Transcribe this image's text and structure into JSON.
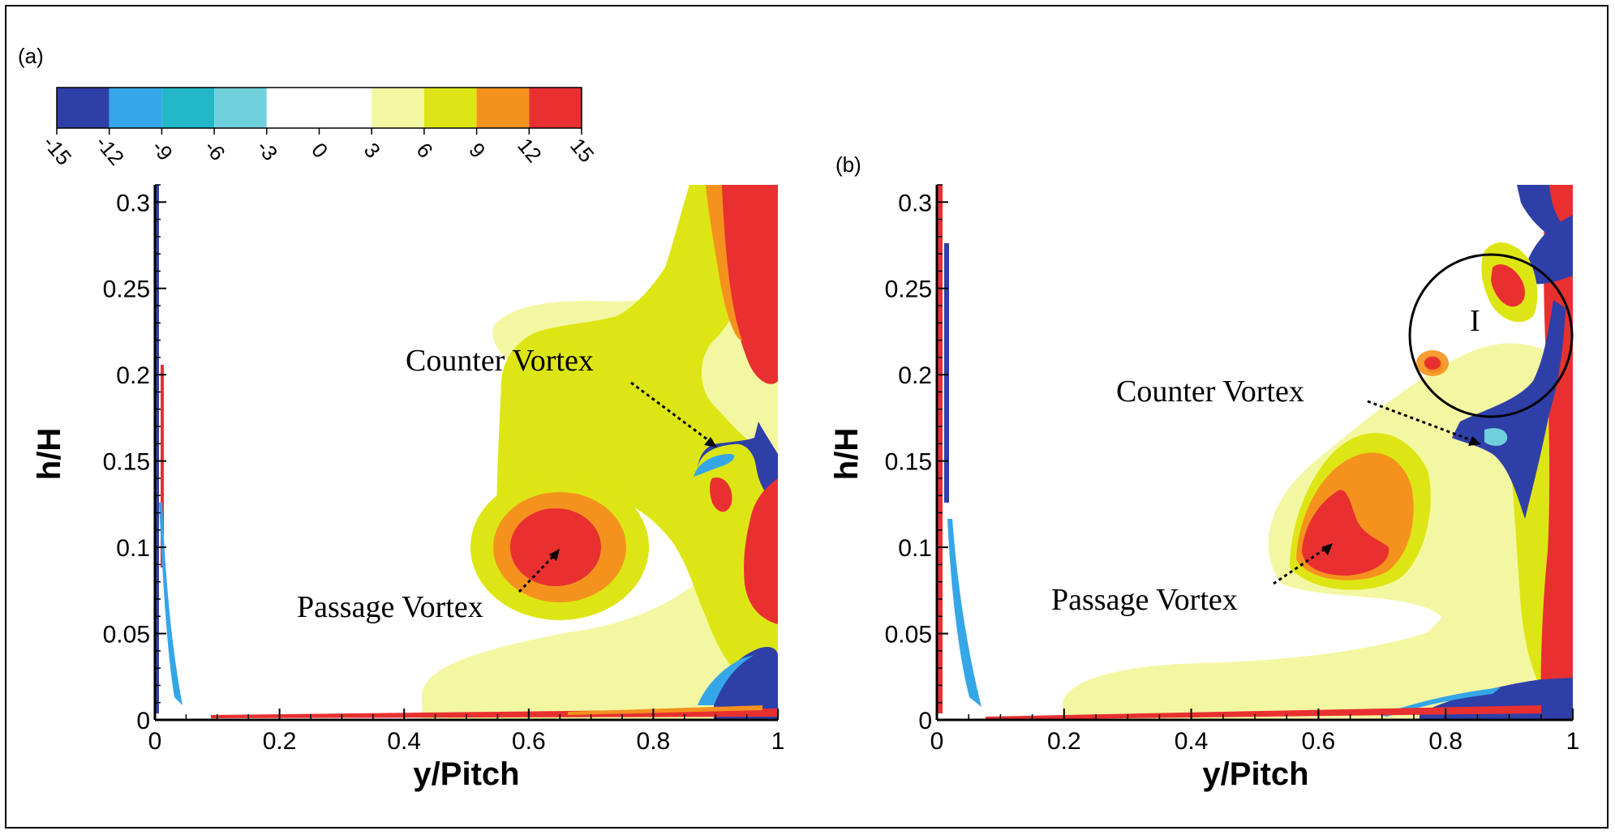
{
  "colorbar": {
    "ticks": [
      "-15",
      "-12",
      "-9",
      "-6",
      "-3",
      "0",
      "3",
      "6",
      "9",
      "12",
      "15"
    ],
    "colors": [
      "#2f3fa8",
      "#35a6e8",
      "#22b8c8",
      "#6fd0dc",
      "#ffffff",
      "#ffffff",
      "#f4f7a2",
      "#dde614",
      "#f5921e",
      "#e83030"
    ]
  },
  "chart_data": [
    {
      "type": "contour",
      "panel_label": "(a)",
      "xlabel": "y/Pitch",
      "ylabel": "h/H",
      "xlim": [
        0,
        1
      ],
      "ylim": [
        0,
        0.31
      ],
      "xticks": [
        "0",
        "0.2",
        "0.4",
        "0.6",
        "0.8",
        "1"
      ],
      "yticks": [
        "0",
        "0.05",
        "0.1",
        "0.15",
        "0.2",
        "0.25",
        "0.3"
      ],
      "annotations": [
        {
          "text": "Counter Vortex",
          "x": 0.9,
          "y": 0.162
        },
        {
          "text": "Passage Vortex",
          "x": 0.65,
          "y": 0.1
        }
      ]
    },
    {
      "type": "contour",
      "panel_label": "(b)",
      "xlabel": "y/Pitch",
      "ylabel": "h/H",
      "xlim": [
        0,
        1
      ],
      "ylim": [
        0,
        0.31
      ],
      "xticks": [
        "0",
        "0.2",
        "0.4",
        "0.6",
        "0.8",
        "1"
      ],
      "yticks": [
        "0",
        "0.05",
        "0.1",
        "0.15",
        "0.2",
        "0.25",
        "0.3"
      ],
      "annotations": [
        {
          "text": "Counter Vortex",
          "x": 0.86,
          "y": 0.158
        },
        {
          "text": "Passage Vortex",
          "x": 0.64,
          "y": 0.105
        },
        {
          "text": "I",
          "x": 0.86,
          "y": 0.22
        }
      ]
    }
  ]
}
